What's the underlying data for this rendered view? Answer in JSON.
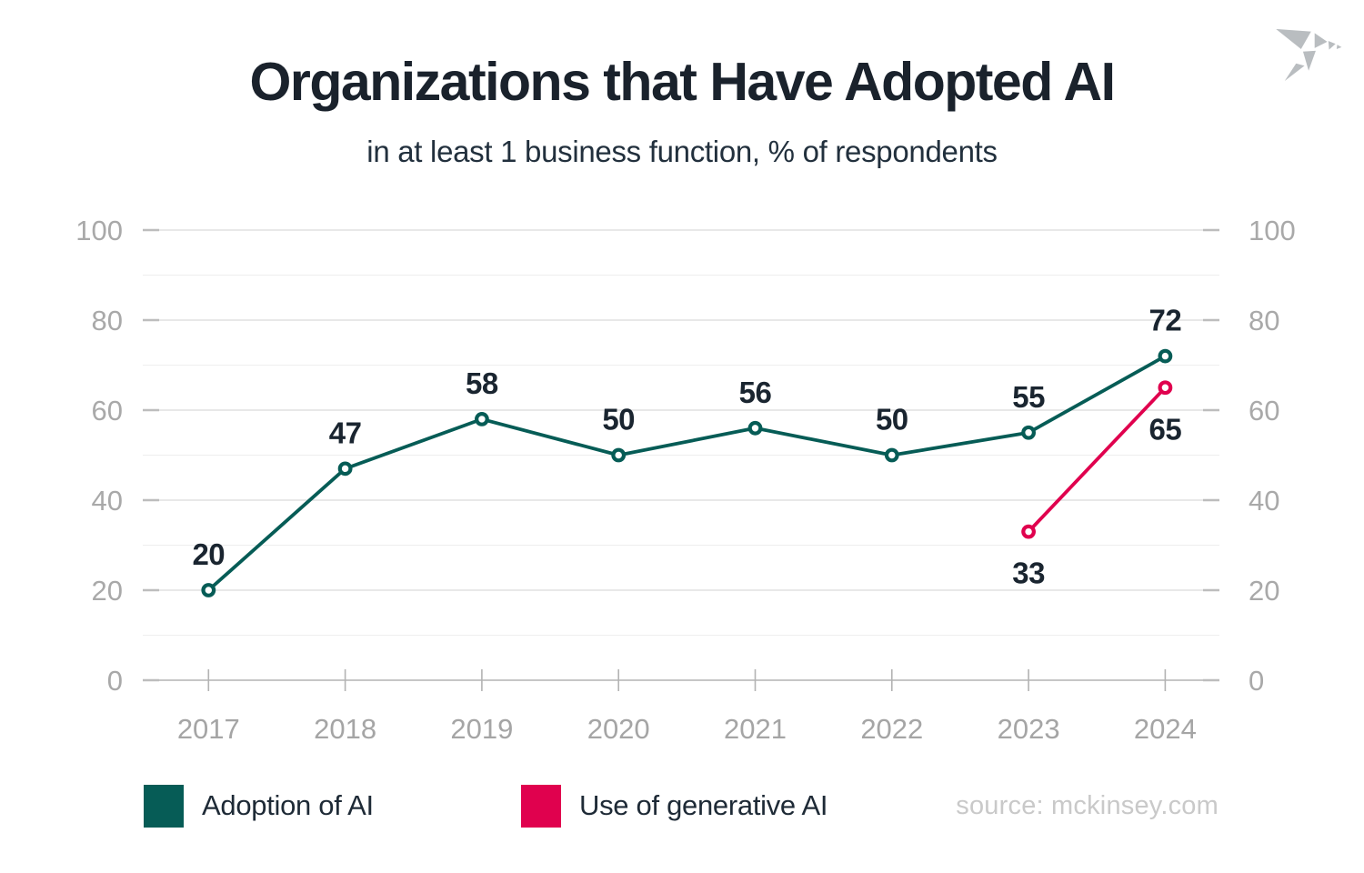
{
  "header": {
    "title": "Organizations that Have Adopted AI",
    "subtitle": "in at least 1 business function, % of respondents"
  },
  "logo": {
    "name": "origami-bird",
    "color": "#b9bdc0"
  },
  "chart_data": {
    "type": "line",
    "title": "Organizations that Have Adopted AI",
    "subtitle": "in at least 1 business function, % of respondents",
    "x": [
      2017,
      2018,
      2019,
      2020,
      2021,
      2022,
      2023,
      2024
    ],
    "series": [
      {
        "name": "Adoption of AI",
        "color": "#065c56",
        "x": [
          2017,
          2018,
          2019,
          2020,
          2021,
          2022,
          2023,
          2024
        ],
        "values": [
          20,
          47,
          58,
          50,
          56,
          50,
          55,
          72
        ],
        "label_placement": "above"
      },
      {
        "name": "Use of generative AI",
        "color": "#e0014e",
        "x": [
          2023,
          2024
        ],
        "values": [
          33,
          65
        ],
        "label_placement": "below"
      }
    ],
    "ylim": [
      0,
      100
    ],
    "yticks": [
      0,
      20,
      40,
      60,
      80,
      100
    ],
    "minor_yticks": [
      10,
      30,
      50,
      70,
      90
    ],
    "grid": true,
    "dual_y_axis_labels": true,
    "data_labels": true,
    "marker": "open-circle",
    "legend_position": "bottom-left",
    "label_color": "#1a2530",
    "axis_label_color": "#a9a9a9"
  },
  "legend": {
    "items": [
      {
        "label": "Adoption of AI",
        "color": "#065c56"
      },
      {
        "label": "Use of generative AI",
        "color": "#e0014e"
      }
    ]
  },
  "footer": {
    "source": "source: mckinsey.com"
  }
}
